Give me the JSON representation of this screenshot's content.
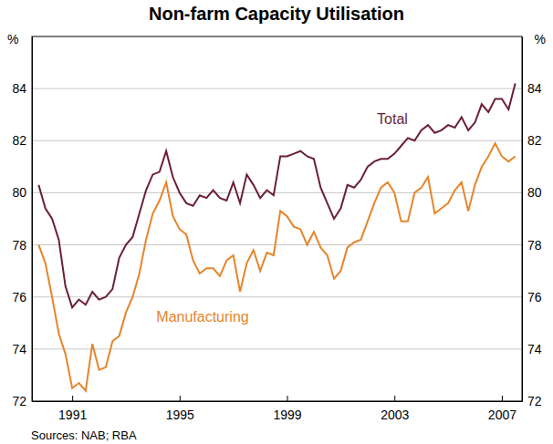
{
  "chart_data": {
    "type": "line",
    "title": "Non-farm Capacity Utilisation",
    "ylabel": "%",
    "source": "Sources: NAB; RBA",
    "x": [
      1989.75,
      1990,
      1990.25,
      1990.5,
      1990.75,
      1991,
      1991.25,
      1991.5,
      1991.75,
      1992,
      1992.25,
      1992.5,
      1992.75,
      1993,
      1993.25,
      1993.5,
      1993.75,
      1994,
      1994.25,
      1994.5,
      1994.75,
      1995,
      1995.25,
      1995.5,
      1995.75,
      1996,
      1996.25,
      1996.5,
      1996.75,
      1997,
      1997.25,
      1997.5,
      1997.75,
      1998,
      1998.25,
      1998.5,
      1998.75,
      1999,
      1999.25,
      1999.5,
      1999.75,
      2000,
      2000.25,
      2000.5,
      2000.75,
      2001,
      2001.25,
      2001.5,
      2001.75,
      2002,
      2002.25,
      2002.5,
      2002.75,
      2003,
      2003.25,
      2003.5,
      2003.75,
      2004,
      2004.25,
      2004.5,
      2004.75,
      2005,
      2005.25,
      2005.5,
      2005.75,
      2006,
      2006.25,
      2006.5,
      2006.75,
      2007,
      2007.25,
      2007.5
    ],
    "series": [
      {
        "name": "Total",
        "color": "#6b1f35",
        "values": [
          80.3,
          79.4,
          79.0,
          78.2,
          76.4,
          75.6,
          75.9,
          75.7,
          76.2,
          75.9,
          76.0,
          76.3,
          77.5,
          78.0,
          78.3,
          79.2,
          80.1,
          80.7,
          80.8,
          81.6,
          80.6,
          80.0,
          79.6,
          79.5,
          79.9,
          79.8,
          80.1,
          79.8,
          79.7,
          80.4,
          79.6,
          80.7,
          80.3,
          79.8,
          80.1,
          79.9,
          81.4,
          81.4,
          81.5,
          81.6,
          81.4,
          81.3,
          80.2,
          79.6,
          79.0,
          79.4,
          80.3,
          80.2,
          80.5,
          81.0,
          81.2,
          81.3,
          81.3,
          81.5,
          81.8,
          82.1,
          82.0,
          82.4,
          82.6,
          82.3,
          82.4,
          82.6,
          82.5,
          82.9,
          82.4,
          82.7,
          83.4,
          83.1,
          83.6,
          83.6,
          83.2,
          84.2
        ]
      },
      {
        "name": "Manufacturing",
        "color": "#e5852b",
        "values": [
          78.0,
          77.3,
          76.0,
          74.6,
          73.8,
          72.5,
          72.7,
          72.4,
          74.2,
          73.2,
          73.3,
          74.3,
          74.5,
          75.4,
          76.0,
          76.9,
          78.2,
          79.2,
          79.7,
          80.4,
          79.1,
          78.6,
          78.4,
          77.4,
          76.9,
          77.1,
          77.1,
          76.8,
          77.4,
          77.6,
          76.2,
          77.3,
          77.8,
          77.0,
          77.7,
          77.6,
          79.3,
          79.1,
          78.7,
          78.6,
          78.0,
          78.5,
          77.9,
          77.6,
          76.7,
          77.0,
          77.9,
          78.1,
          78.2,
          78.9,
          79.6,
          80.2,
          80.4,
          80.0,
          78.9,
          78.9,
          80.0,
          80.2,
          80.6,
          79.2,
          79.4,
          79.6,
          80.1,
          80.4,
          79.3,
          80.3,
          81.0,
          81.4,
          81.9,
          81.4,
          81.2,
          81.4
        ]
      }
    ],
    "xlim": [
      1989.5,
      2007.75
    ],
    "xticks": [
      1991,
      1995,
      1999,
      2003,
      2007
    ],
    "ylim": [
      72,
      86
    ],
    "yticks": [
      72,
      74,
      76,
      78,
      80,
      82,
      84
    ],
    "grid": true
  }
}
